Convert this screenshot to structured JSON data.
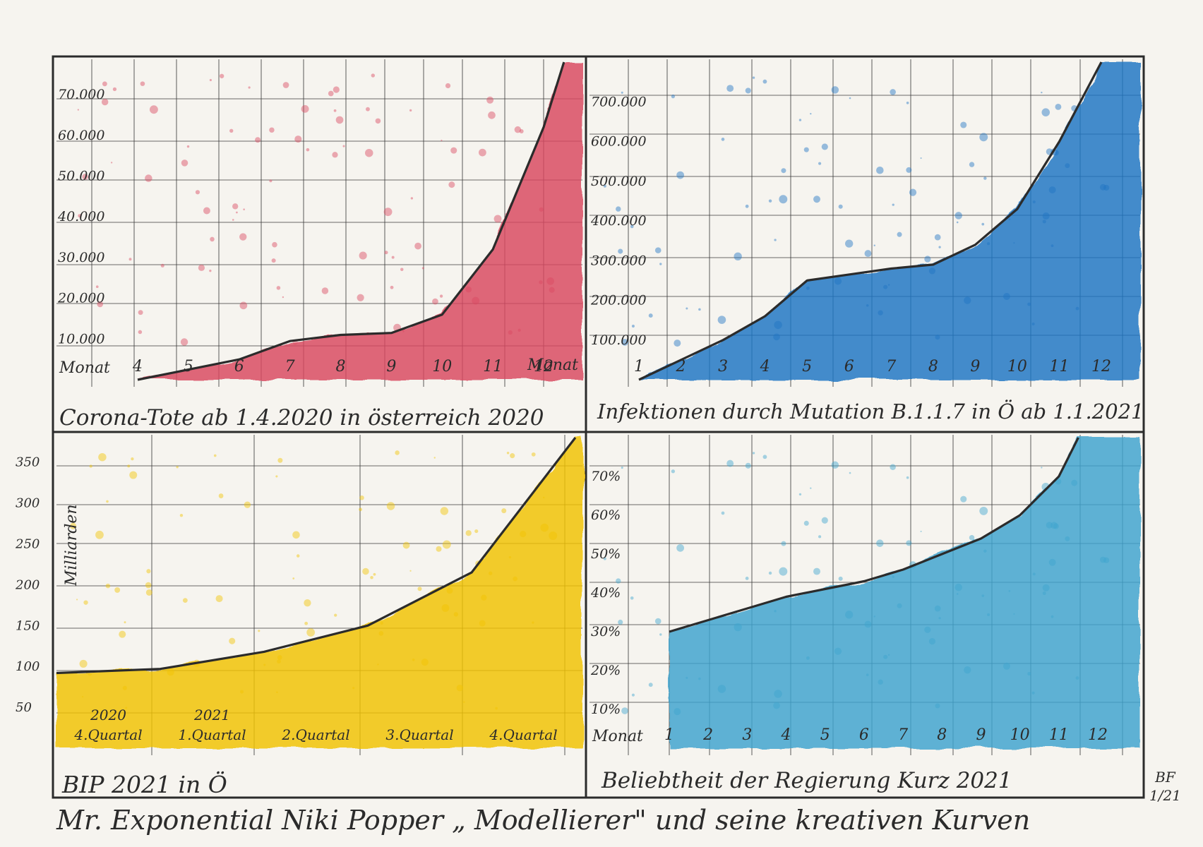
{
  "colors": {
    "corona_fill": "#d9475f",
    "mutation_fill": "#1f74c4",
    "bip_fill": "#f2c300",
    "approval_fill": "#3ea3cf",
    "ink": "#2b2b2b",
    "paper": "#f6f4ef"
  },
  "footer": {
    "caption": "Mr. Exponential Niki Popper „ Modellierer\" und seine kreativen Kurven",
    "signature_line1": "BF",
    "signature_line2": "1/21"
  },
  "chart_data": [
    {
      "id": "corona",
      "type": "area",
      "title": "Corona-Tote ab 1.4.2020 in österreich 2020",
      "xlabel": "Monat",
      "xlabel_right": "Monat",
      "ylabel": "",
      "x": [
        4,
        5,
        6,
        7,
        8,
        9,
        10,
        11,
        12
      ],
      "xtick_labels": [
        "4",
        "5",
        "6",
        "7",
        "8",
        "9",
        "10",
        "11",
        "12"
      ],
      "ytick_labels": [
        "10.000",
        "20.000",
        "30.000",
        "40.000",
        "50.000",
        "60.000",
        "70.000"
      ],
      "yticks": [
        10000,
        20000,
        30000,
        40000,
        50000,
        60000,
        70000
      ],
      "ylim": [
        0,
        78000
      ],
      "curve": [
        [
          4,
          0
        ],
        [
          5,
          2500
        ],
        [
          6,
          5000
        ],
        [
          7,
          9500
        ],
        [
          8,
          11000
        ],
        [
          9,
          11500
        ],
        [
          10,
          16000
        ],
        [
          11,
          32000
        ],
        [
          12,
          62000
        ],
        [
          12.4,
          78000
        ]
      ],
      "grid": true
    },
    {
      "id": "mutation",
      "type": "area",
      "title": "Infektionen durch Mutation B.1.1.7 in Ö ab 1.1.2021",
      "xlabel": "",
      "ylabel": "",
      "x": [
        1,
        2,
        3,
        4,
        5,
        6,
        7,
        8,
        9,
        10,
        11,
        12
      ],
      "xtick_labels": [
        "1",
        "2",
        "3",
        "4",
        "5",
        "6",
        "7",
        "8",
        "9",
        "10",
        "11",
        "12"
      ],
      "ytick_labels": [
        "100.000",
        "200.000",
        "300.000",
        "400.000",
        "500.000",
        "600.000",
        "700.000"
      ],
      "yticks": [
        100000,
        200000,
        300000,
        400000,
        500000,
        600000,
        700000
      ],
      "ylim": [
        0,
        800000
      ],
      "curve": [
        [
          1,
          0
        ],
        [
          2,
          50000
        ],
        [
          3,
          100000
        ],
        [
          4,
          160000
        ],
        [
          5,
          250000
        ],
        [
          6,
          265000
        ],
        [
          7,
          280000
        ],
        [
          8,
          290000
        ],
        [
          9,
          340000
        ],
        [
          10,
          430000
        ],
        [
          11,
          600000
        ],
        [
          12,
          800000
        ]
      ],
      "grid": true
    },
    {
      "id": "bip",
      "type": "area",
      "title": "BIP 2021 in Ö",
      "xlabel": "",
      "ylabel": "Milliarden",
      "categories": [
        "2020 4.Quartal",
        "2021 1.Quartal",
        "2.Quartal",
        "3.Quartal",
        "4.Quartal"
      ],
      "category_year_labels": [
        "2020",
        "2021",
        "",
        "",
        ""
      ],
      "category_quarter_labels": [
        "4.Quartal",
        "1.Quartal",
        "2.Quartal",
        "3.Quartal",
        "4.Quartal"
      ],
      "ytick_labels": [
        "50",
        "100",
        "150",
        "200",
        "250",
        "300",
        "350"
      ],
      "yticks": [
        50,
        100,
        150,
        200,
        250,
        300,
        350
      ],
      "ylim": [
        0,
        380
      ],
      "curve": [
        [
          0,
          92
        ],
        [
          1,
          97
        ],
        [
          2,
          118
        ],
        [
          3,
          150
        ],
        [
          4,
          215
        ],
        [
          5,
          380
        ]
      ],
      "grid": true
    },
    {
      "id": "approval",
      "type": "area",
      "title": "Beliebtheit der Regierung Kurz 2021",
      "xlabel": "Monat",
      "ylabel": "",
      "x": [
        1,
        2,
        3,
        4,
        5,
        6,
        7,
        8,
        9,
        10,
        11,
        12
      ],
      "xtick_labels": [
        "1",
        "2",
        "3",
        "4",
        "5",
        "6",
        "7",
        "8",
        "9",
        "10",
        "11",
        "12"
      ],
      "ytick_labels": [
        "10%",
        "20%",
        "30%",
        "40%",
        "50%",
        "60%",
        "70%"
      ],
      "yticks": [
        10,
        20,
        30,
        40,
        50,
        60,
        70
      ],
      "ylim": [
        0,
        80
      ],
      "curve": [
        [
          1,
          30
        ],
        [
          2,
          33
        ],
        [
          3,
          36
        ],
        [
          4,
          39
        ],
        [
          5,
          41
        ],
        [
          6,
          43
        ],
        [
          7,
          46
        ],
        [
          8,
          50
        ],
        [
          9,
          54
        ],
        [
          10,
          60
        ],
        [
          11,
          70
        ],
        [
          11.5,
          80
        ]
      ],
      "grid": true
    }
  ]
}
